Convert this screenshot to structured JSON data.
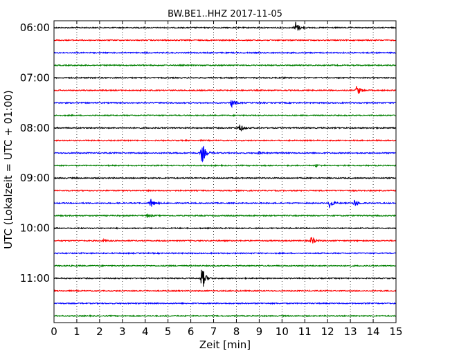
{
  "chart_data": {
    "type": "line",
    "title": "BW.BE1..HHZ 2017-11-05",
    "xlabel": "Zeit  [min]",
    "ylabel": "UTC (Lokalzeit = UTC + 01:00)",
    "xlim": [
      0,
      15
    ],
    "x_ticks": [
      "0",
      "1",
      "2",
      "3",
      "4",
      "5",
      "6",
      "7",
      "8",
      "9",
      "10",
      "11",
      "12",
      "13",
      "14",
      "15"
    ],
    "y_tick_labels": [
      "06:00",
      "07:00",
      "08:00",
      "09:00",
      "10:00",
      "11:00"
    ],
    "trace_start_times": [
      "06:00",
      "06:15",
      "06:30",
      "06:45",
      "07:00",
      "07:15",
      "07:30",
      "07:45",
      "08:00",
      "08:15",
      "08:30",
      "08:45",
      "09:00",
      "09:15",
      "09:30",
      "09:45",
      "10:00",
      "10:15",
      "10:30",
      "10:45",
      "11:00",
      "11:15",
      "11:30",
      "11:45"
    ],
    "trace_colors": [
      "#000000",
      "#ff0000",
      "#0000ff",
      "#008000"
    ],
    "grid": "vertical-dotted",
    "events": [
      {
        "trace": 0,
        "minute": 10.6,
        "amplitude": 0.55
      },
      {
        "trace": 5,
        "minute": 13.3,
        "amplitude": 0.45
      },
      {
        "trace": 6,
        "minute": 7.8,
        "amplitude": 0.35
      },
      {
        "trace": 8,
        "minute": 8.15,
        "amplitude": 0.35
      },
      {
        "trace": 10,
        "minute": 6.5,
        "amplitude": 0.9
      },
      {
        "trace": 10,
        "minute": 9.0,
        "amplitude": 0.12
      },
      {
        "trace": 11,
        "minute": 11.5,
        "amplitude": 0.1
      },
      {
        "trace": 14,
        "minute": 4.25,
        "amplitude": 0.4
      },
      {
        "trace": 14,
        "minute": 12.1,
        "amplitude": 0.4
      },
      {
        "trace": 14,
        "minute": 13.2,
        "amplitude": 0.3
      },
      {
        "trace": 15,
        "minute": 4.1,
        "amplitude": 0.12
      },
      {
        "trace": 17,
        "minute": 11.3,
        "amplitude": 0.35
      },
      {
        "trace": 17,
        "minute": 2.2,
        "amplitude": 0.1
      },
      {
        "trace": 20,
        "minute": 6.5,
        "amplitude": 1.0
      }
    ]
  }
}
